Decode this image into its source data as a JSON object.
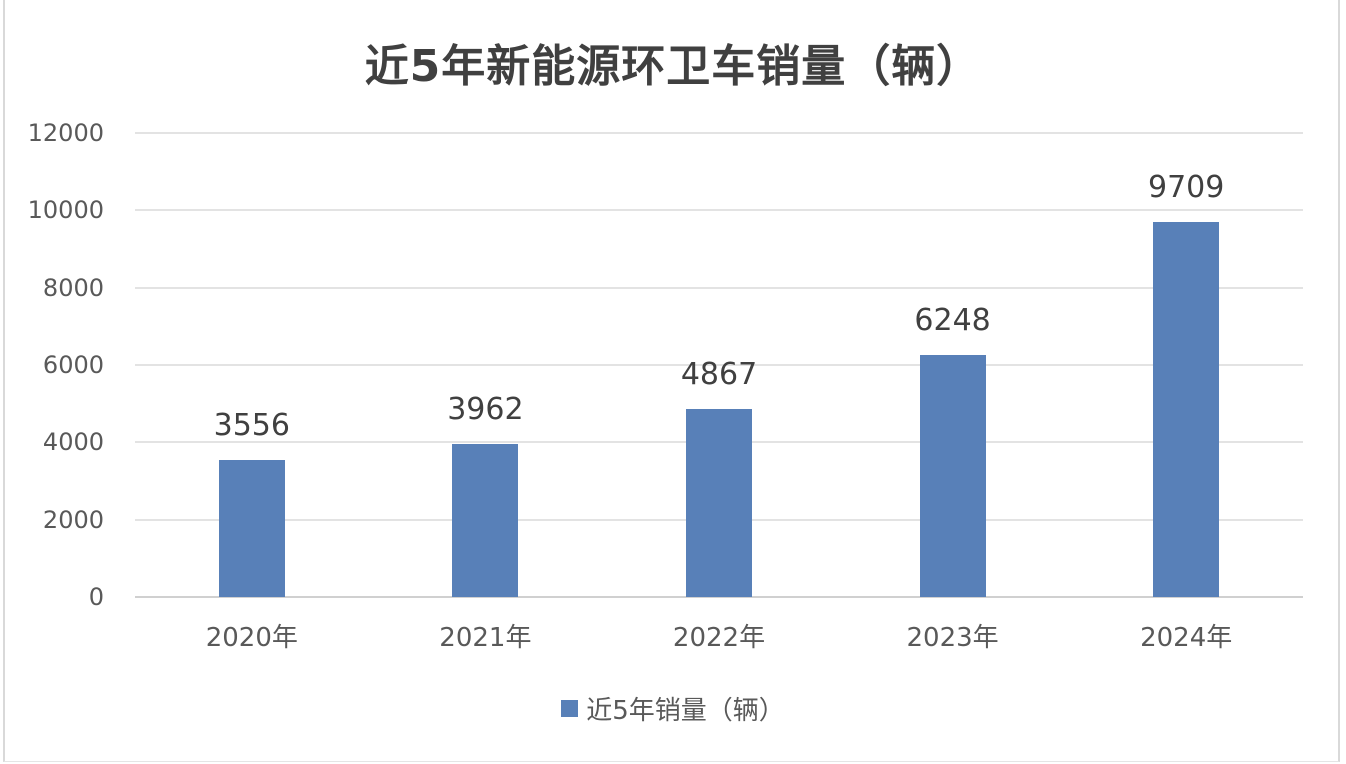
{
  "chart_data": {
    "type": "bar",
    "title": "近5年新能源环卫车销量（辆）",
    "categories": [
      "2020年",
      "2021年",
      "2022年",
      "2023年",
      "2024年"
    ],
    "series": [
      {
        "name": "近5年销量（辆）",
        "values": [
          3556,
          3962,
          4867,
          6248,
          9709
        ],
        "color": "#5880b8"
      }
    ],
    "xlabel": "",
    "ylabel": "",
    "ylim": [
      0,
      12000
    ],
    "yticks": [
      0,
      2000,
      4000,
      6000,
      8000,
      10000,
      12000
    ],
    "grid": true,
    "data_labels": true,
    "legend_position": "bottom"
  },
  "colors": {
    "bar": "#5880b8",
    "title": "#404040",
    "gridline": "#e3e3e3",
    "tick_text": "#595959"
  }
}
